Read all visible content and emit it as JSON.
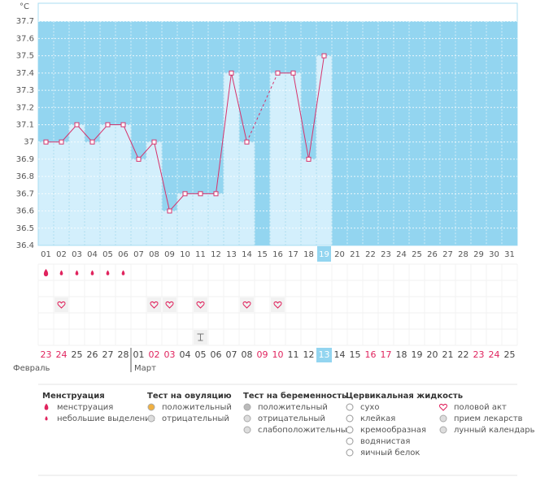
{
  "chart_data": {
    "type": "line",
    "y_label": "°C",
    "categories": [
      "01",
      "02",
      "03",
      "04",
      "05",
      "06",
      "07",
      "08",
      "09",
      "10",
      "11",
      "12",
      "13",
      "14",
      "15",
      "16",
      "17",
      "18",
      "19",
      "20",
      "21",
      "22",
      "23",
      "24",
      "25",
      "26",
      "27",
      "28",
      "29",
      "30",
      "31"
    ],
    "series": [
      {
        "color": "#d6336c",
        "values": [
          37.0,
          37.0,
          37.1,
          37.0,
          37.1,
          37.1,
          36.9,
          37.0,
          36.6,
          36.7,
          36.7,
          36.7,
          37.4,
          37.0,
          null,
          37.4,
          37.4,
          36.9,
          37.5,
          null,
          null,
          null,
          null,
          null,
          null,
          null,
          null,
          null,
          null,
          null,
          null
        ]
      }
    ],
    "ylim": [
      36.4,
      37.8
    ],
    "yticks": [
      36.4,
      36.5,
      36.6,
      36.7,
      36.8,
      36.9,
      37,
      37.1,
      37.2,
      37.3,
      37.4,
      37.5,
      37.6,
      37.7
    ],
    "grid": true,
    "highlight_index": 18
  },
  "symbols": {
    "menstruation_days": [
      1,
      2,
      3,
      4,
      5,
      6
    ],
    "heavy_days": [
      1
    ],
    "intercourse_days": [
      2,
      8,
      9,
      11,
      14,
      16
    ],
    "sticky_days": [
      11
    ]
  },
  "calendar": {
    "dates": [
      {
        "label": "23",
        "red": true
      },
      {
        "label": "24",
        "red": true
      },
      {
        "label": "25",
        "red": false
      },
      {
        "label": "26",
        "red": false
      },
      {
        "label": "27",
        "red": false
      },
      {
        "label": "28",
        "red": false
      },
      {
        "label": "01",
        "red": false
      },
      {
        "label": "02",
        "red": true
      },
      {
        "label": "03",
        "red": true
      },
      {
        "label": "04",
        "red": false
      },
      {
        "label": "05",
        "red": false
      },
      {
        "label": "06",
        "red": false
      },
      {
        "label": "07",
        "red": false
      },
      {
        "label": "08",
        "red": false
      },
      {
        "label": "09",
        "red": true
      },
      {
        "label": "10",
        "red": true
      },
      {
        "label": "11",
        "red": false
      },
      {
        "label": "12",
        "red": false
      },
      {
        "label": "13",
        "red": false
      },
      {
        "label": "14",
        "red": false
      },
      {
        "label": "15",
        "red": false
      },
      {
        "label": "16",
        "red": true
      },
      {
        "label": "17",
        "red": true
      },
      {
        "label": "18",
        "red": false
      },
      {
        "label": "19",
        "red": false
      },
      {
        "label": "20",
        "red": false
      },
      {
        "label": "21",
        "red": false
      },
      {
        "label": "22",
        "red": false
      },
      {
        "label": "23",
        "red": true
      },
      {
        "label": "24",
        "red": true
      },
      {
        "label": "25",
        "red": false
      }
    ],
    "months": [
      "Февраль",
      "Март"
    ]
  },
  "legend": [
    {
      "title": "Менструация",
      "items": [
        "менструация",
        "небольшие выделения"
      ]
    },
    {
      "title": "Тест на овуляцию",
      "items": [
        "положительный",
        "отрицательный"
      ]
    },
    {
      "title": "Тест на беременность",
      "items": [
        "положительный",
        "отрицательный",
        "слабоположительный"
      ]
    },
    {
      "title": "Цервикальная жидкость",
      "items": [
        "сухо",
        "клейкая",
        "кремообразная",
        "водянистая",
        "яичный белок"
      ]
    },
    {
      "title": null,
      "items": [
        "половой акт",
        "прием лекарств",
        "лунный календарь"
      ]
    }
  ]
}
